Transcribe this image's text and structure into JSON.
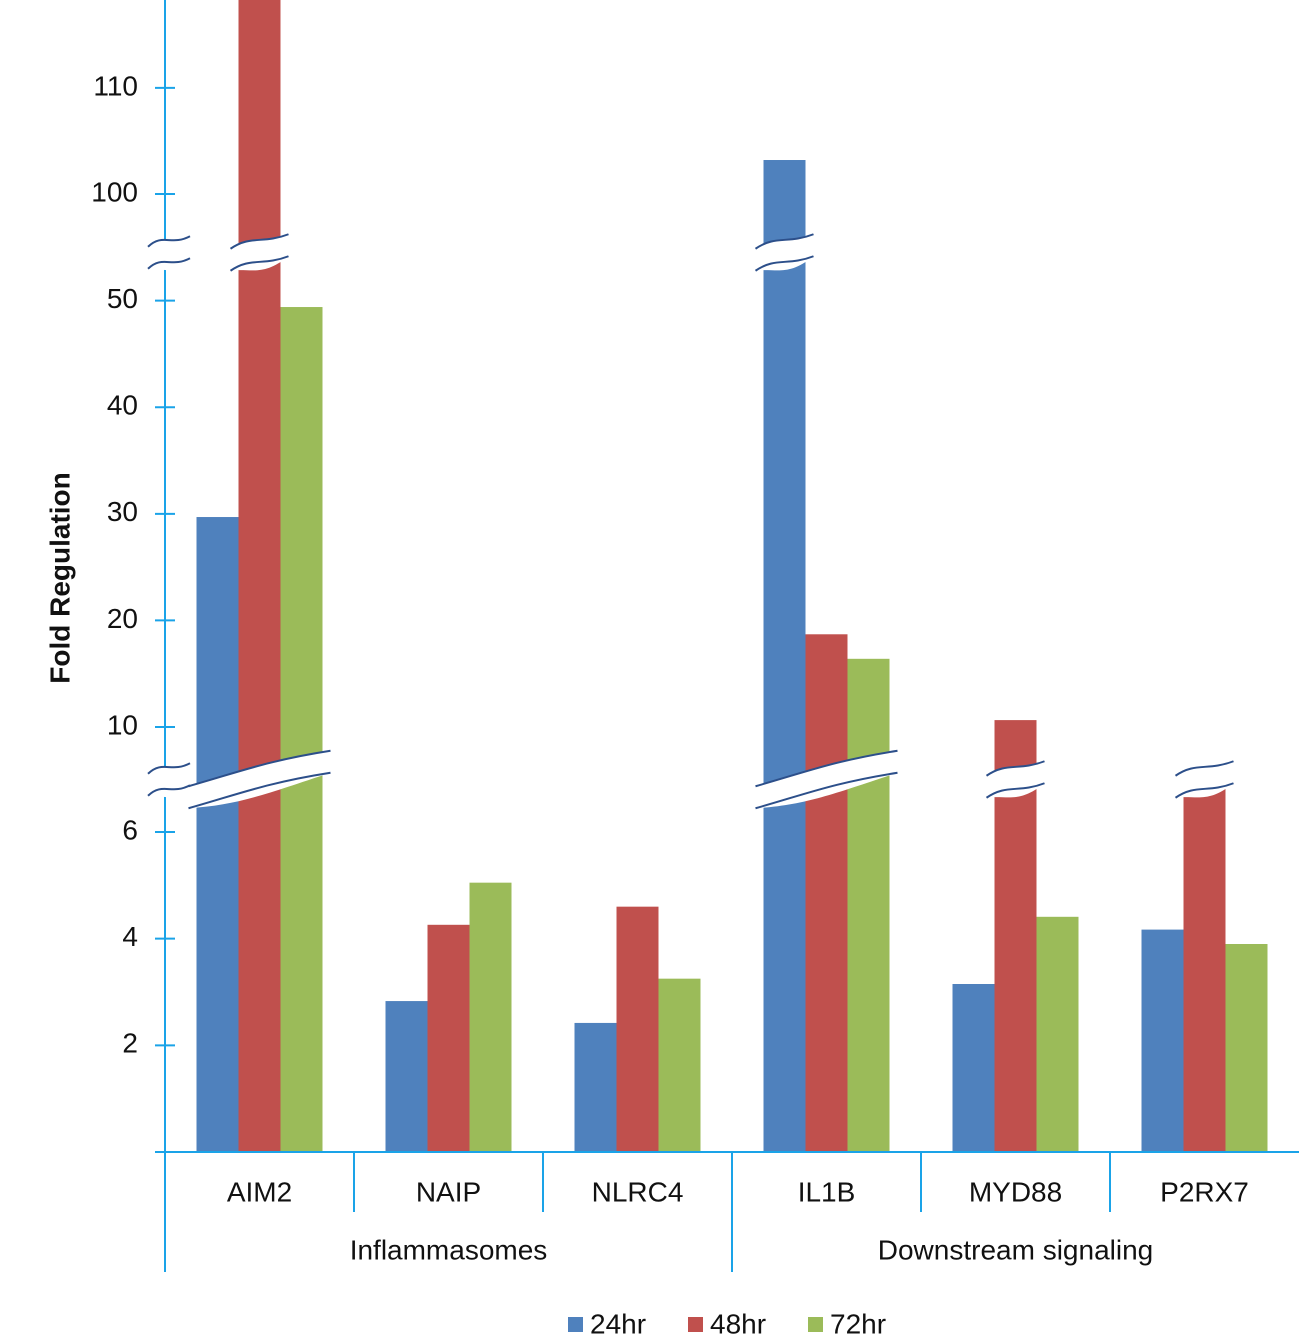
{
  "chart_data": {
    "type": "bar",
    "y_label": "Fold Regulation",
    "groups": [
      {
        "name": "Inflammasomes",
        "categories": [
          "AIM2",
          "NAIP",
          "NLRC4"
        ]
      },
      {
        "name": "Downstream signaling",
        "categories": [
          "IL1B",
          "MYD88",
          "P2RX7"
        ]
      }
    ],
    "y_segments": [
      {
        "ylim": [
          0,
          6.9
        ],
        "yticks": [
          2,
          4,
          6
        ]
      },
      {
        "ylim": [
          5.5,
          54
        ],
        "yticks": [
          10,
          20,
          30,
          40,
          50
        ]
      },
      {
        "ylim": [
          95,
          118
        ],
        "yticks": [
          100,
          110
        ]
      }
    ],
    "series": [
      {
        "name": "24hr",
        "color": "#4f81bd",
        "values": [
          29.7,
          2.83,
          2.42,
          103.2,
          3.15,
          4.17
        ]
      },
      {
        "name": "48hr",
        "color": "#c0504d",
        "values": [
          120,
          4.26,
          4.6,
          18.7,
          10.65,
          5.93
        ]
      },
      {
        "name": "72hr",
        "color": "#9bbb59",
        "values": [
          49.4,
          5.05,
          3.25,
          16.4,
          4.41,
          3.9
        ]
      }
    ]
  }
}
